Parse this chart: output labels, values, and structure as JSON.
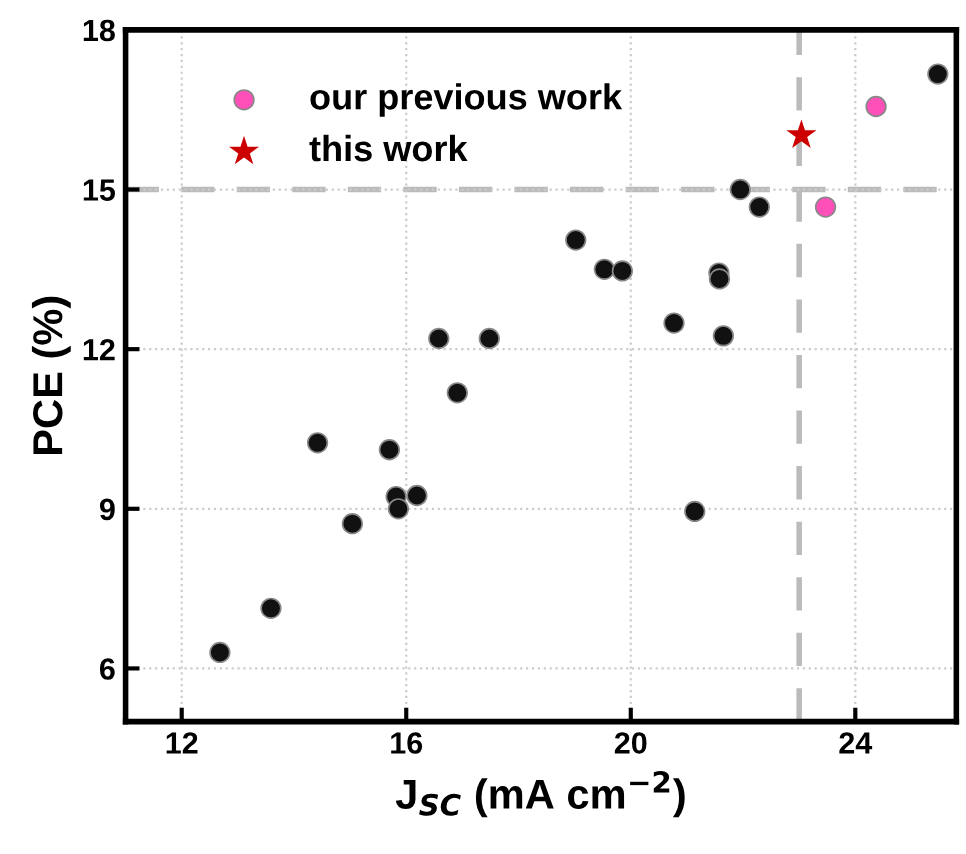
{
  "chart_data": {
    "type": "scatter",
    "xlabel": "J$_{SC}$ (mA cm$^{−2}$)",
    "ylabel": "PCE (%)",
    "xlim": [
      11,
      25.8
    ],
    "ylim": [
      5,
      18
    ],
    "xticks": [
      12,
      16,
      20,
      24
    ],
    "yticks": [
      6,
      9,
      12,
      15,
      18
    ],
    "grid": true,
    "legend": "top left",
    "series": [
      {
        "color": "#111111",
        "marker": "circle",
        "x": [
          25.47,
          21.95,
          22.29,
          19.02,
          19.53,
          19.85,
          21.57,
          21.58,
          20.77,
          21.65,
          16.58,
          17.48,
          16.91,
          14.42,
          15.7,
          15.82,
          16.19,
          15.86,
          15.04,
          21.14,
          13.59,
          12.68
        ],
        "values": [
          17.17,
          15.0,
          14.67,
          14.05,
          13.5,
          13.47,
          13.43,
          13.32,
          12.49,
          12.25,
          12.2,
          12.2,
          11.18,
          10.24,
          10.11,
          9.23,
          9.25,
          9.0,
          8.72,
          8.95,
          7.13,
          6.3
        ]
      },
      {
        "name": "our previous work",
        "color": "#ff4fb8",
        "marker": "circle",
        "x": [
          24.37,
          23.47
        ],
        "values": [
          16.56,
          14.67
        ]
      },
      {
        "name": "this work",
        "color": "#cc0000",
        "marker": "star",
        "x": [
          23.04
        ],
        "values": [
          16.02
        ]
      }
    ],
    "ref_lines": [
      {
        "axis": "y",
        "value": 15,
        "color": "#bbbbbb",
        "line_style": "dashed"
      },
      {
        "axis": "x",
        "value": 23,
        "color": "#bbbbbb",
        "line_style": "dashed"
      }
    ]
  }
}
